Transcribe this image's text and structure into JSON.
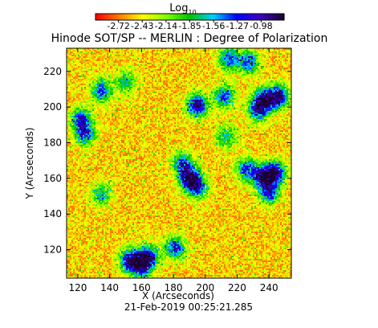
{
  "chart_data": {
    "type": "heatmap",
    "title": "Hinode SOT/SP -- MERLIN : Degree of Polarization",
    "timestamp": "21-Feb-2019 00:25:21.285",
    "xlabel": "X (Arcseconds)",
    "ylabel": "Y (Arcseconds)",
    "xlim": [
      113,
      254
    ],
    "ylim": [
      104,
      233
    ],
    "x_ticks": [
      120,
      140,
      160,
      180,
      200,
      220,
      240
    ],
    "y_ticks": [
      120,
      140,
      160,
      180,
      200,
      220
    ],
    "colorbar": {
      "title": "Log",
      "title_subscript": "10",
      "scale": "log10",
      "range": [
        -3.0,
        -0.7
      ],
      "tick_values": [
        -2.72,
        -2.43,
        -2.14,
        -1.85,
        -1.56,
        -1.27,
        -0.98
      ],
      "tick_labels": [
        "-2.72",
        "-2.43",
        "-2.14",
        "-1.85",
        "-1.56",
        "-1.27",
        "-0.98"
      ],
      "colormap": [
        "#ff0000",
        "#ff7f00",
        "#ffff00",
        "#7fff00",
        "#00c000",
        "#00d0ff",
        "#0000ff",
        "#3f00c0",
        "#1a0030"
      ]
    },
    "features": [
      {
        "x": 195,
        "y": 201,
        "level": "high"
      },
      {
        "x": 212,
        "y": 206,
        "level": "medium"
      },
      {
        "x": 237,
        "y": 204,
        "level": "high"
      },
      {
        "x": 246,
        "y": 206,
        "level": "high"
      },
      {
        "x": 227,
        "y": 225,
        "level": "medium"
      },
      {
        "x": 215,
        "y": 227,
        "level": "medium"
      },
      {
        "x": 233,
        "y": 198,
        "level": "medium"
      },
      {
        "x": 125,
        "y": 185,
        "level": "medium"
      },
      {
        "x": 122,
        "y": 193,
        "level": "medium"
      },
      {
        "x": 150,
        "y": 214,
        "level": "low"
      },
      {
        "x": 190,
        "y": 160,
        "level": "high"
      },
      {
        "x": 195,
        "y": 155,
        "level": "medium"
      },
      {
        "x": 186,
        "y": 168,
        "level": "medium"
      },
      {
        "x": 236,
        "y": 161,
        "level": "high"
      },
      {
        "x": 244,
        "y": 163,
        "level": "high"
      },
      {
        "x": 240,
        "y": 152,
        "level": "medium"
      },
      {
        "x": 226,
        "y": 165,
        "level": "medium"
      },
      {
        "x": 153,
        "y": 114,
        "level": "high"
      },
      {
        "x": 164,
        "y": 116,
        "level": "high"
      },
      {
        "x": 160,
        "y": 110,
        "level": "medium"
      },
      {
        "x": 181,
        "y": 121,
        "level": "medium"
      },
      {
        "x": 135,
        "y": 209,
        "level": "medium"
      },
      {
        "x": 213,
        "y": 183,
        "level": "low"
      },
      {
        "x": 135,
        "y": 151,
        "level": "low"
      }
    ]
  }
}
